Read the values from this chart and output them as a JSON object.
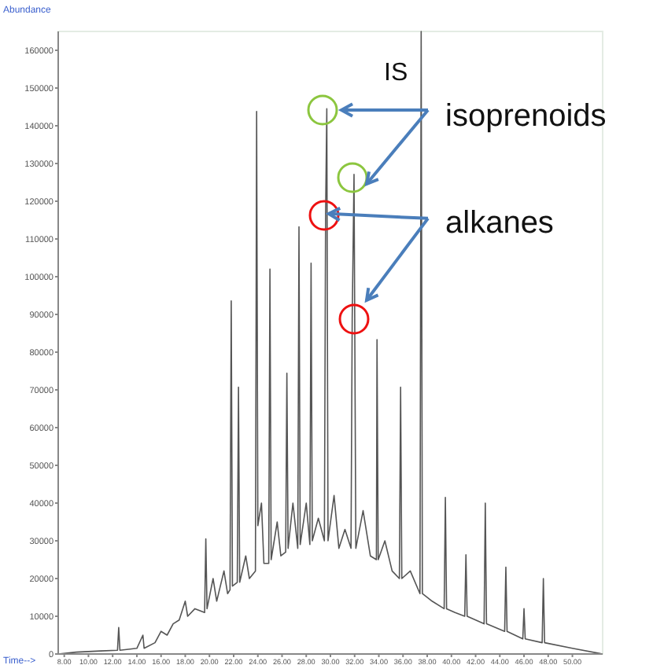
{
  "chart_data": {
    "type": "line",
    "xlabel": "Time-->",
    "ylabel": "Abundance",
    "annotations": [
      "IS",
      "isoprenoids",
      {
        "text": "alkanes",
        "x": 29.6,
        "y": 116700
      }
    ],
    "series": [
      {
        "color": "#555555",
        "x": [
          7.5,
          9,
          11,
          12.4,
          12.5,
          12.6,
          14,
          14.5,
          14.6,
          15.5,
          16,
          16.5,
          17,
          17.5,
          18,
          18.2,
          18.8,
          19.6,
          19.7,
          19.8,
          20.3,
          20.6,
          21.2,
          21.5,
          21.7,
          21.8,
          21.9,
          22.3,
          22.4,
          22.5,
          23.0,
          23.3,
          23.8,
          23.9,
          24.0,
          24.3,
          24.5,
          24.9,
          25.0,
          25.1,
          25.6,
          25.9,
          26.3,
          26.4,
          26.5,
          26.9,
          27.3,
          27.4,
          27.5,
          28.0,
          28.3,
          28.4,
          28.5,
          29.0,
          29.5,
          29.6,
          29.7,
          29.8,
          30.3,
          30.7,
          31.2,
          31.7,
          31.8,
          31.95,
          32.1,
          32.7,
          33.3,
          33.8,
          33.85,
          33.95,
          34.5,
          35.1,
          35.7,
          35.8,
          35.9,
          36.6,
          37.4,
          37.5,
          37.6,
          38.4,
          39.4,
          39.5,
          39.6,
          40.3,
          41.1,
          41.2,
          41.3,
          42.0,
          42.7,
          42.8,
          42.9,
          44.4,
          44.5,
          44.6,
          45.9,
          46.0,
          46.1,
          47.5,
          47.6,
          47.7,
          50,
          52.5
        ],
        "values": [
          0,
          500,
          800,
          1000,
          7000,
          1000,
          1500,
          5000,
          1500,
          3000,
          6000,
          5000,
          8000,
          9000,
          14000,
          10000,
          12000,
          11000,
          30500,
          12000,
          20000,
          14000,
          22000,
          16000,
          17000,
          93600,
          18000,
          19000,
          70700,
          19000,
          26000,
          20000,
          22000,
          143800,
          34000,
          40000,
          24000,
          24000,
          102000,
          25000,
          35000,
          26000,
          27000,
          74400,
          28000,
          40000,
          28000,
          113200,
          29000,
          40000,
          29000,
          103600,
          30000,
          36000,
          30000,
          116700,
          144500,
          30000,
          42000,
          28000,
          33000,
          28000,
          89000,
          127100,
          28000,
          38000,
          26000,
          25000,
          83300,
          25000,
          30000,
          22000,
          20000,
          70700,
          20000,
          22000,
          16000,
          165000,
          16000,
          14000,
          12000,
          41500,
          12000,
          11000,
          10000,
          26300,
          10000,
          9000,
          8000,
          40000,
          8000,
          6000,
          23000,
          6000,
          4000,
          12000,
          4000,
          3000,
          20000,
          3000,
          1500,
          0
        ]
      }
    ],
    "xlim": [
      7.5,
      52.5
    ],
    "xticks": [
      {
        "value": 8,
        "label": "8.00"
      },
      {
        "value": 10,
        "label": "10.00"
      },
      {
        "value": 12,
        "label": "12.00"
      },
      {
        "value": 14,
        "label": "14.00"
      },
      {
        "value": 16,
        "label": "16.00"
      },
      {
        "value": 18,
        "label": "18.00"
      },
      {
        "value": 20,
        "label": "20.00"
      },
      {
        "value": 22,
        "label": "22.00"
      },
      {
        "value": 24,
        "label": "24.00"
      },
      {
        "value": 26,
        "label": "26.00"
      },
      {
        "value": 28,
        "label": "28.00"
      },
      {
        "value": 30,
        "label": "30.00"
      },
      {
        "value": 32,
        "label": "32.00"
      },
      {
        "value": 34,
        "label": "34.00"
      },
      {
        "value": 36,
        "label": "36.00"
      },
      {
        "value": 38,
        "label": "38.00"
      },
      {
        "value": 40,
        "label": "40.00"
      },
      {
        "value": 42,
        "label": "42.00"
      },
      {
        "value": 44,
        "label": "44.00"
      },
      {
        "value": 46,
        "label": "46.00"
      },
      {
        "value": 48,
        "label": "48.00"
      },
      {
        "value": 50,
        "label": "50.00"
      }
    ],
    "ylim": [
      0,
      165000
    ],
    "yticks": [
      0,
      10000,
      20000,
      30000,
      40000,
      50000,
      60000,
      70000,
      80000,
      90000,
      100000,
      110000,
      120000,
      130000,
      140000,
      150000,
      160000
    ],
    "grid": false,
    "marker": "none",
    "line_style": "solid"
  }
}
